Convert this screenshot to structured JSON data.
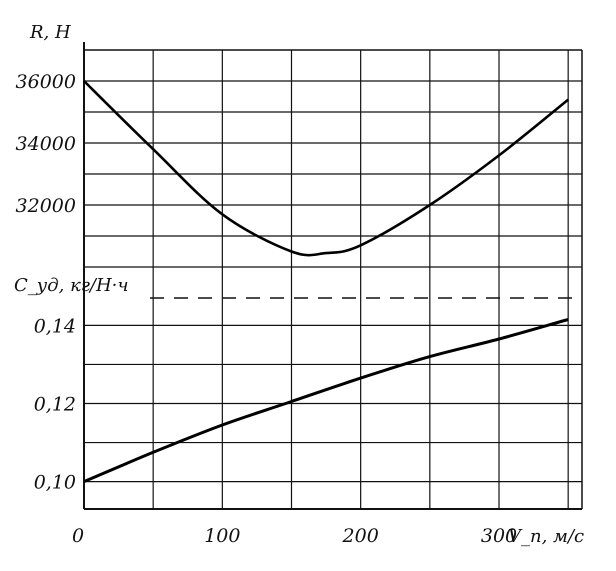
{
  "chart_data": [
    {
      "type": "line",
      "ylabel": "R, Н",
      "x_unit_label": "V_п, м/с",
      "xlim": [
        0,
        360
      ],
      "ylim": [
        29000,
        37000
      ],
      "y_ticks": [
        32000,
        34000,
        36000
      ],
      "y_tick_labels": [
        "32000",
        "34000",
        "36000"
      ],
      "grid": true,
      "series": [
        {
          "x": [
            0,
            50,
            100,
            150,
            175,
            200,
            250,
            300,
            350
          ],
          "values": [
            36000,
            33800,
            31700,
            30500,
            30450,
            30700,
            32000,
            33600,
            35400
          ]
        }
      ]
    },
    {
      "type": "line",
      "ylabel": "C_уд, кг/Н·ч",
      "xlabel": "V_п, м/с",
      "xlim": [
        0,
        360
      ],
      "ylim": [
        0.093,
        0.147
      ],
      "y_ticks": [
        0.1,
        0.12,
        0.14
      ],
      "y_tick_labels": [
        "0,10",
        "0,12",
        "0,14"
      ],
      "x_ticks": [
        0,
        100,
        200,
        300
      ],
      "x_tick_labels": [
        "0",
        "100",
        "200",
        "300"
      ],
      "grid": true,
      "series": [
        {
          "x": [
            0,
            50,
            100,
            150,
            200,
            250,
            300,
            350
          ],
          "values": [
            0.1,
            0.1075,
            0.1145,
            0.1205,
            0.1265,
            0.132,
            0.1365,
            0.1415
          ]
        }
      ]
    }
  ]
}
